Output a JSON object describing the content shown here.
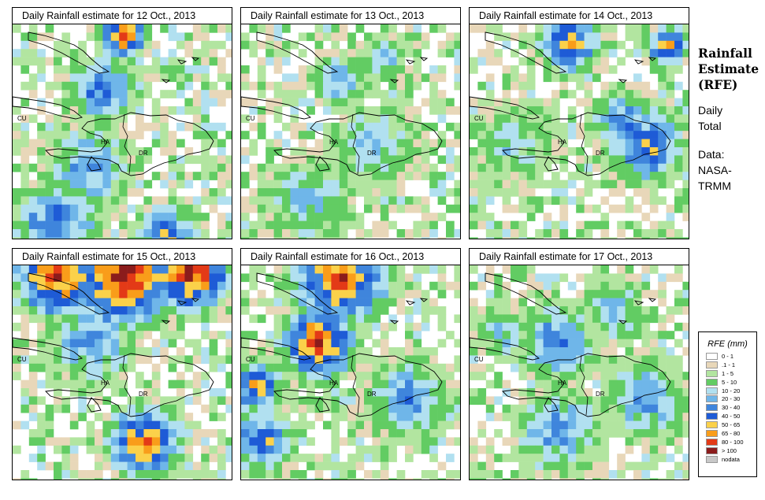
{
  "panels": [
    {
      "title": "Daily Rainfall estimate for  12 Oct., 2013",
      "date": "12 Oct., 2013"
    },
    {
      "title": "Daily Rainfall estimate for  13 Oct., 2013",
      "date": "13 Oct., 2013"
    },
    {
      "title": "Daily Rainfall estimate for  14 Oct., 2013",
      "date": "14 Oct., 2013"
    },
    {
      "title": "Daily Rainfall estimate for  15 Oct., 2013",
      "date": "15 Oct., 2013"
    },
    {
      "title": "Daily Rainfall estimate for  16 Oct., 2013",
      "date": "16 Oct., 2013"
    },
    {
      "title": "Daily Rainfall estimate for  17 Oct., 2013",
      "date": "17 Oct., 2013"
    }
  ],
  "map_labels": {
    "cu": "CU",
    "ha": "HA",
    "dr": "DR"
  },
  "side_title": {
    "line1": "Rainfall",
    "line2": "Estimate",
    "line3": "(RFE)",
    "line4": "Daily",
    "line5": "Total",
    "line6": "Data:",
    "line7": "NASA-",
    "line8": "TRMM"
  },
  "legend": {
    "title": "RFE (mm)",
    "items": [
      {
        "label": "0 - 1",
        "color": "#ffffff"
      },
      {
        "label": ".1 - 1",
        "color": "#e8d7b9"
      },
      {
        "label": "1 - 5",
        "color": "#b2e5a0"
      },
      {
        "label": "5 - 10",
        "color": "#62cc63"
      },
      {
        "label": "10 - 20",
        "color": "#b1e0f0"
      },
      {
        "label": "20 - 30",
        "color": "#6fb6e9"
      },
      {
        "label": "30 - 40",
        "color": "#3f85dc"
      },
      {
        "label": "40 - 50",
        "color": "#1e5bd6"
      },
      {
        "label": "50 - 65",
        "color": "#fbd14a"
      },
      {
        "label": "65 - 80",
        "color": "#f99d1a"
      },
      {
        "label": "80 - 100",
        "color": "#e33a17"
      },
      {
        "label": "> 100",
        "color": "#8b1c1c"
      },
      {
        "label": "nodata",
        "color": "#c8c8c8"
      }
    ]
  }
}
